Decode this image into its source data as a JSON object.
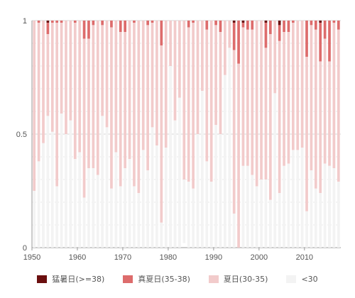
{
  "chart_data": {
    "type": "bar",
    "stacked": true,
    "x": [
      1950,
      1951,
      1952,
      1953,
      1954,
      1955,
      1956,
      1957,
      1958,
      1959,
      1960,
      1961,
      1962,
      1963,
      1964,
      1965,
      1966,
      1967,
      1968,
      1969,
      1970,
      1971,
      1972,
      1973,
      1974,
      1975,
      1976,
      1977,
      1978,
      1979,
      1980,
      1981,
      1982,
      1983,
      1984,
      1985,
      1986,
      1987,
      1988,
      1989,
      1990,
      1991,
      1992,
      1993,
      1994,
      1995,
      1996,
      1997,
      1998,
      1999,
      2000,
      2001,
      2002,
      2003,
      2004,
      2005,
      2006,
      2007,
      2008,
      2009,
      2010,
      2011,
      2012,
      2013,
      2014,
      2015,
      2016,
      2017
    ],
    "series": [
      {
        "name": "猛暑日(>=38)",
        "color": "#6b0f0f",
        "values": [
          0,
          0,
          0,
          0.01,
          0,
          0,
          0,
          0,
          0,
          0,
          0,
          0,
          0,
          0,
          0,
          0,
          0,
          0,
          0,
          0,
          0,
          0,
          0,
          0,
          0,
          0,
          0,
          0,
          0,
          0,
          0,
          0,
          0,
          0,
          0,
          0,
          0,
          0,
          0,
          0,
          0,
          0,
          0,
          0,
          0.01,
          0,
          0.01,
          0,
          0,
          0,
          0,
          0.01,
          0,
          0,
          0.02,
          0,
          0,
          0,
          0,
          0,
          0,
          0,
          0,
          0.01,
          0,
          0,
          0,
          0
        ]
      },
      {
        "name": "真夏日(35-38)",
        "color": "#dd6c6c",
        "values": [
          0,
          0.01,
          0,
          0.05,
          0.01,
          0.01,
          0.01,
          0,
          0,
          0.01,
          0,
          0.08,
          0.08,
          0.02,
          0,
          0.02,
          0,
          0.03,
          0,
          0.05,
          0.05,
          0,
          0.01,
          0,
          0,
          0.02,
          0.01,
          0,
          0.11,
          0,
          0,
          0,
          0,
          0,
          0.03,
          0.01,
          0,
          0,
          0.04,
          0,
          0.02,
          0.05,
          0,
          0,
          0.12,
          0.19,
          0.02,
          0.04,
          0.04,
          0,
          0,
          0.11,
          0.06,
          0,
          0.07,
          0.05,
          0.05,
          0.01,
          0,
          0,
          0.16,
          0.02,
          0.04,
          0.17,
          0.08,
          0.18,
          0.01,
          0.04
        ]
      },
      {
        "name": "夏日(30-35)",
        "color": "#f2cbcb",
        "values": [
          0.75,
          0.61,
          0.54,
          0.36,
          0.48,
          0.72,
          0.4,
          0.5,
          0.44,
          0.6,
          0.58,
          0.7,
          0.57,
          0.63,
          0.68,
          0.4,
          0.47,
          0.71,
          0.58,
          0.68,
          0.6,
          0.61,
          0.72,
          0.76,
          0.57,
          0.64,
          0.46,
          0.55,
          0.78,
          0.56,
          0.2,
          0.44,
          0.34,
          0.7,
          0.68,
          0.73,
          0.5,
          0.31,
          0.58,
          0.71,
          0.44,
          0.45,
          0.24,
          0.12,
          0.72,
          0.81,
          0.61,
          0.6,
          0.64,
          0.73,
          0.7,
          0.58,
          0.73,
          0.32,
          0.67,
          0.59,
          0.58,
          0.56,
          0.57,
          0.56,
          0.68,
          0.64,
          0.7,
          0.58,
          0.55,
          0.46,
          0.64,
          0.67
        ]
      },
      {
        "name": "<30",
        "color": "#f3f3f3",
        "values": [
          0.25,
          0.38,
          0.46,
          0.58,
          0.51,
          0.27,
          0.59,
          0.5,
          0.56,
          0.39,
          0.42,
          0.22,
          0.35,
          0.35,
          0.32,
          0.58,
          0.53,
          0.26,
          0.42,
          0.27,
          0.35,
          0.39,
          0.27,
          0.24,
          0.43,
          0.34,
          0.53,
          0.45,
          0.11,
          0.44,
          0.8,
          0.56,
          0.66,
          0.28,
          0.29,
          0.26,
          0.5,
          0.69,
          0.38,
          0.29,
          0.54,
          0.5,
          0.76,
          0.88,
          0.15,
          0.0,
          0.36,
          0.36,
          0.32,
          0.27,
          0.3,
          0.3,
          0.21,
          0.68,
          0.24,
          0.36,
          0.37,
          0.43,
          0.43,
          0.44,
          0.16,
          0.34,
          0.26,
          0.24,
          0.37,
          0.36,
          0.35,
          0.29
        ]
      }
    ],
    "xlim": [
      1950,
      2017
    ],
    "ylim": [
      0,
      1
    ],
    "xticks": [
      "1950",
      "1960",
      "1970",
      "1980",
      "1990",
      "2000",
      "2010"
    ],
    "yticks": [
      "0",
      "0.5",
      "1"
    ],
    "grid": true,
    "legend_position": "bottom"
  }
}
